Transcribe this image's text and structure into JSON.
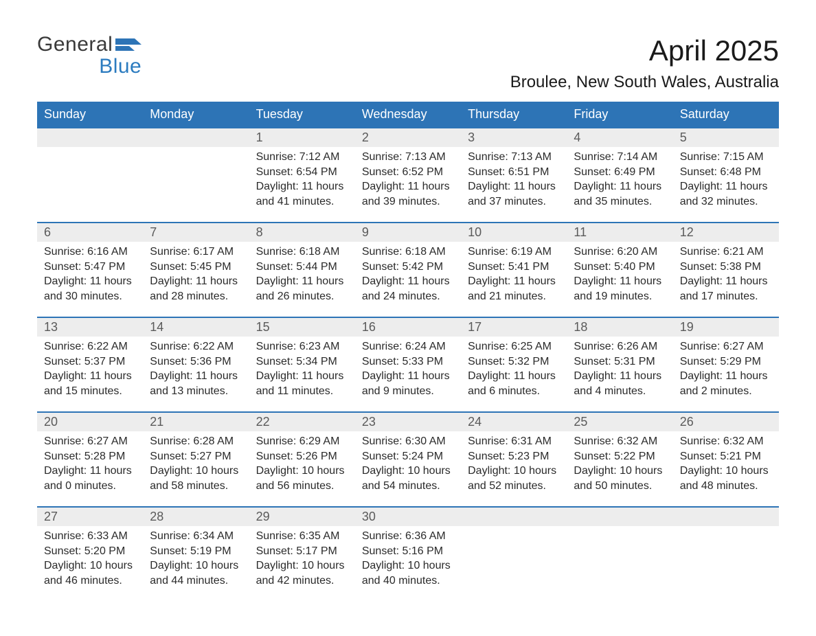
{
  "logo": {
    "general": "General",
    "blue": "Blue",
    "flag_color": "#2d74b6"
  },
  "title": "April 2025",
  "location": "Broulee, New South Wales, Australia",
  "colors": {
    "header_bg": "#2d74b6",
    "header_text": "#ffffff",
    "daynum_bg": "#ededed",
    "daynum_border": "#2d74b6",
    "daynum_text": "#5a5a5a",
    "body_text": "#2a2a2a",
    "logo_gray": "#3a3a3a",
    "logo_blue": "#2b7bbf",
    "background": "#ffffff"
  },
  "typography": {
    "title_fontsize": 42,
    "location_fontsize": 24,
    "header_fontsize": 18,
    "daynum_fontsize": 18,
    "cell_fontsize": 16
  },
  "weekdays": [
    "Sunday",
    "Monday",
    "Tuesday",
    "Wednesday",
    "Thursday",
    "Friday",
    "Saturday"
  ],
  "weeks": [
    [
      null,
      null,
      {
        "day": "1",
        "sunrise": "Sunrise: 7:12 AM",
        "sunset": "Sunset: 6:54 PM",
        "daylight": "Daylight: 11 hours and 41 minutes."
      },
      {
        "day": "2",
        "sunrise": "Sunrise: 7:13 AM",
        "sunset": "Sunset: 6:52 PM",
        "daylight": "Daylight: 11 hours and 39 minutes."
      },
      {
        "day": "3",
        "sunrise": "Sunrise: 7:13 AM",
        "sunset": "Sunset: 6:51 PM",
        "daylight": "Daylight: 11 hours and 37 minutes."
      },
      {
        "day": "4",
        "sunrise": "Sunrise: 7:14 AM",
        "sunset": "Sunset: 6:49 PM",
        "daylight": "Daylight: 11 hours and 35 minutes."
      },
      {
        "day": "5",
        "sunrise": "Sunrise: 7:15 AM",
        "sunset": "Sunset: 6:48 PM",
        "daylight": "Daylight: 11 hours and 32 minutes."
      }
    ],
    [
      {
        "day": "6",
        "sunrise": "Sunrise: 6:16 AM",
        "sunset": "Sunset: 5:47 PM",
        "daylight": "Daylight: 11 hours and 30 minutes."
      },
      {
        "day": "7",
        "sunrise": "Sunrise: 6:17 AM",
        "sunset": "Sunset: 5:45 PM",
        "daylight": "Daylight: 11 hours and 28 minutes."
      },
      {
        "day": "8",
        "sunrise": "Sunrise: 6:18 AM",
        "sunset": "Sunset: 5:44 PM",
        "daylight": "Daylight: 11 hours and 26 minutes."
      },
      {
        "day": "9",
        "sunrise": "Sunrise: 6:18 AM",
        "sunset": "Sunset: 5:42 PM",
        "daylight": "Daylight: 11 hours and 24 minutes."
      },
      {
        "day": "10",
        "sunrise": "Sunrise: 6:19 AM",
        "sunset": "Sunset: 5:41 PM",
        "daylight": "Daylight: 11 hours and 21 minutes."
      },
      {
        "day": "11",
        "sunrise": "Sunrise: 6:20 AM",
        "sunset": "Sunset: 5:40 PM",
        "daylight": "Daylight: 11 hours and 19 minutes."
      },
      {
        "day": "12",
        "sunrise": "Sunrise: 6:21 AM",
        "sunset": "Sunset: 5:38 PM",
        "daylight": "Daylight: 11 hours and 17 minutes."
      }
    ],
    [
      {
        "day": "13",
        "sunrise": "Sunrise: 6:22 AM",
        "sunset": "Sunset: 5:37 PM",
        "daylight": "Daylight: 11 hours and 15 minutes."
      },
      {
        "day": "14",
        "sunrise": "Sunrise: 6:22 AM",
        "sunset": "Sunset: 5:36 PM",
        "daylight": "Daylight: 11 hours and 13 minutes."
      },
      {
        "day": "15",
        "sunrise": "Sunrise: 6:23 AM",
        "sunset": "Sunset: 5:34 PM",
        "daylight": "Daylight: 11 hours and 11 minutes."
      },
      {
        "day": "16",
        "sunrise": "Sunrise: 6:24 AM",
        "sunset": "Sunset: 5:33 PM",
        "daylight": "Daylight: 11 hours and 9 minutes."
      },
      {
        "day": "17",
        "sunrise": "Sunrise: 6:25 AM",
        "sunset": "Sunset: 5:32 PM",
        "daylight": "Daylight: 11 hours and 6 minutes."
      },
      {
        "day": "18",
        "sunrise": "Sunrise: 6:26 AM",
        "sunset": "Sunset: 5:31 PM",
        "daylight": "Daylight: 11 hours and 4 minutes."
      },
      {
        "day": "19",
        "sunrise": "Sunrise: 6:27 AM",
        "sunset": "Sunset: 5:29 PM",
        "daylight": "Daylight: 11 hours and 2 minutes."
      }
    ],
    [
      {
        "day": "20",
        "sunrise": "Sunrise: 6:27 AM",
        "sunset": "Sunset: 5:28 PM",
        "daylight": "Daylight: 11 hours and 0 minutes."
      },
      {
        "day": "21",
        "sunrise": "Sunrise: 6:28 AM",
        "sunset": "Sunset: 5:27 PM",
        "daylight": "Daylight: 10 hours and 58 minutes."
      },
      {
        "day": "22",
        "sunrise": "Sunrise: 6:29 AM",
        "sunset": "Sunset: 5:26 PM",
        "daylight": "Daylight: 10 hours and 56 minutes."
      },
      {
        "day": "23",
        "sunrise": "Sunrise: 6:30 AM",
        "sunset": "Sunset: 5:24 PM",
        "daylight": "Daylight: 10 hours and 54 minutes."
      },
      {
        "day": "24",
        "sunrise": "Sunrise: 6:31 AM",
        "sunset": "Sunset: 5:23 PM",
        "daylight": "Daylight: 10 hours and 52 minutes."
      },
      {
        "day": "25",
        "sunrise": "Sunrise: 6:32 AM",
        "sunset": "Sunset: 5:22 PM",
        "daylight": "Daylight: 10 hours and 50 minutes."
      },
      {
        "day": "26",
        "sunrise": "Sunrise: 6:32 AM",
        "sunset": "Sunset: 5:21 PM",
        "daylight": "Daylight: 10 hours and 48 minutes."
      }
    ],
    [
      {
        "day": "27",
        "sunrise": "Sunrise: 6:33 AM",
        "sunset": "Sunset: 5:20 PM",
        "daylight": "Daylight: 10 hours and 46 minutes."
      },
      {
        "day": "28",
        "sunrise": "Sunrise: 6:34 AM",
        "sunset": "Sunset: 5:19 PM",
        "daylight": "Daylight: 10 hours and 44 minutes."
      },
      {
        "day": "29",
        "sunrise": "Sunrise: 6:35 AM",
        "sunset": "Sunset: 5:17 PM",
        "daylight": "Daylight: 10 hours and 42 minutes."
      },
      {
        "day": "30",
        "sunrise": "Sunrise: 6:36 AM",
        "sunset": "Sunset: 5:16 PM",
        "daylight": "Daylight: 10 hours and 40 minutes."
      },
      null,
      null,
      null
    ]
  ]
}
